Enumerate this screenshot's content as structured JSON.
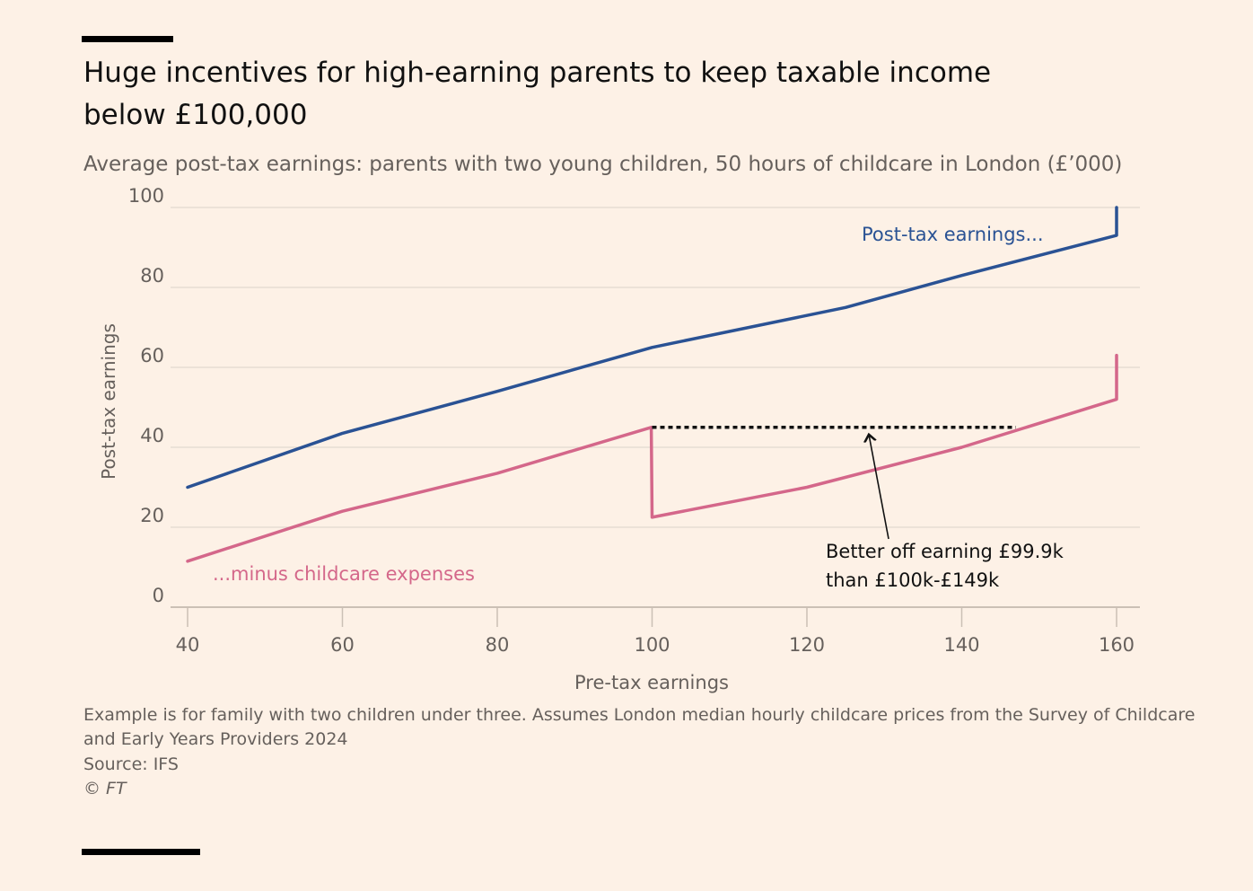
{
  "title": "Huge incentives for high-earning parents to keep taxable income below £100,000",
  "subtitle": "Average post-tax earnings: parents with two young children, 50 hours of childcare in London (£’000)",
  "footer": {
    "note_line1": "Example is for family with two children under three. Assumes London median hourly childcare prices from the Survey of Childcare",
    "note_line2": "and Early Years Providers 2024",
    "source": "Source: IFS",
    "copyright": "© FT"
  },
  "colors": {
    "post_tax": "#2a5294",
    "minus_childcare": "#d4678a",
    "grid": "#e3d9cf",
    "axis": "#cbc0b5",
    "text": "#66605c"
  },
  "chart_data": {
    "type": "line",
    "xlabel": "Pre-tax earnings",
    "ylabel": "Post-tax earnings",
    "xlim": [
      40,
      160
    ],
    "ylim": [
      0,
      100
    ],
    "x_ticks": [
      40,
      60,
      80,
      100,
      120,
      140,
      160
    ],
    "y_ticks": [
      0,
      20,
      40,
      60,
      80,
      100
    ],
    "grid": true,
    "series": [
      {
        "name": "Post-tax earnings...",
        "color": "#2a5294",
        "points": [
          [
            40,
            30
          ],
          [
            60,
            43.5
          ],
          [
            80,
            54
          ],
          [
            100,
            65
          ],
          [
            125,
            75
          ],
          [
            140,
            83
          ],
          [
            160,
            93
          ],
          [
            160,
            100
          ]
        ]
      },
      {
        "name": "...minus childcare expenses",
        "color": "#d4678a",
        "points": [
          [
            40,
            11.5
          ],
          [
            60,
            24
          ],
          [
            80,
            33.5
          ],
          [
            99.9,
            45
          ],
          [
            100,
            22.5
          ],
          [
            120,
            30
          ],
          [
            140,
            40
          ],
          [
            160,
            52
          ],
          [
            160,
            63
          ]
        ]
      }
    ],
    "annotation": {
      "text_line1": "Better off earning £99.9k",
      "text_line2": "than £100k-£149k",
      "dotted_from": [
        100,
        45
      ],
      "dotted_to": [
        147,
        45
      ],
      "arrow_target": [
        128,
        45
      ]
    }
  }
}
